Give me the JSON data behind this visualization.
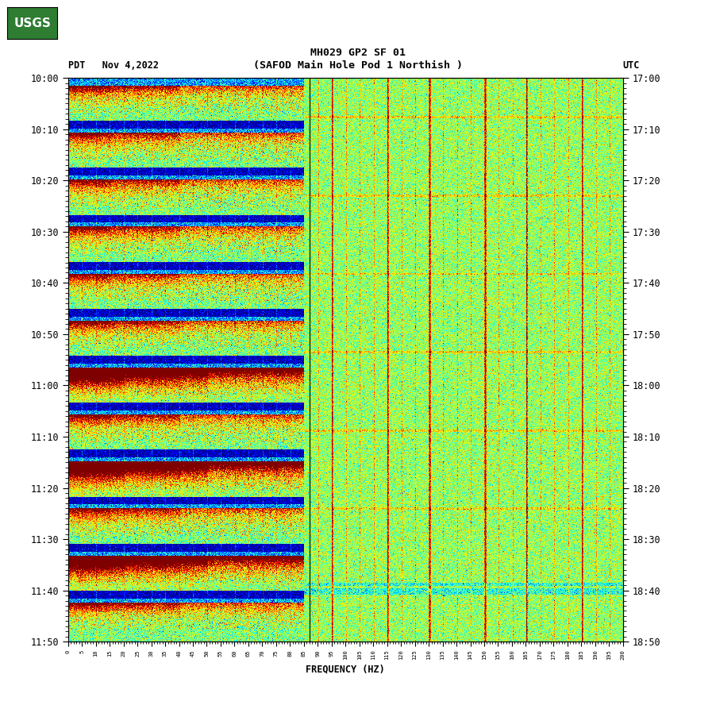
{
  "title_line1": "MH029 GP2 SF 01",
  "title_line2": "(SAFOD Main Hole Pod 1 Northish )",
  "left_label": "PDT   Nov 4,2022",
  "right_label": "UTC",
  "xlabel": "FREQUENCY (HZ)",
  "freq_min": 0,
  "freq_max": 200,
  "pdt_ticks": [
    "10:00",
    "10:10",
    "10:20",
    "10:30",
    "10:40",
    "10:50",
    "11:00",
    "11:10",
    "11:20",
    "11:30",
    "11:40",
    "11:50"
  ],
  "utc_ticks": [
    "17:00",
    "17:10",
    "17:20",
    "17:30",
    "17:40",
    "17:50",
    "18:00",
    "18:10",
    "18:20",
    "18:30",
    "18:40",
    "18:50"
  ],
  "background_color": "#ffffff",
  "vertical_line_freq": 87,
  "seed": 12345,
  "n_time": 720,
  "n_freq": 800
}
